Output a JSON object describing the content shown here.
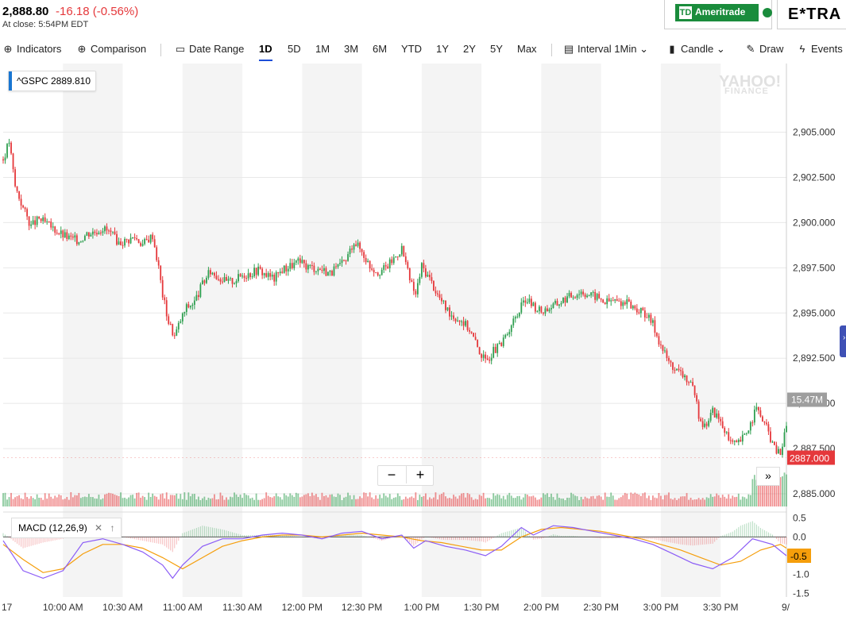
{
  "quote": {
    "price": "2,888.80",
    "change": "-16.18 (-0.56%)",
    "at_close": "At close: 5:54PM EDT"
  },
  "ads": {
    "td_logo": "TD",
    "td_name": "Ameritrade",
    "etrade": "E*TRA"
  },
  "toolbar": {
    "indicators": "Indicators",
    "comparison": "Comparison",
    "date_range": "Date Range",
    "ranges": [
      "1D",
      "5D",
      "1M",
      "3M",
      "6M",
      "YTD",
      "1Y",
      "2Y",
      "5Y",
      "Max"
    ],
    "active_range": "1D",
    "interval": "Interval",
    "interval_value": "1Min",
    "chart_type": "Candle",
    "draw": "Draw",
    "events": "Events"
  },
  "symbol_label": "^GSPC  2889.810",
  "watermark": {
    "line1": "YAHOO!",
    "line2": "FINANCE"
  },
  "volume_label": "15.47M",
  "last_price_label": "2887.000",
  "macd_label": "MACD (12,26,9)",
  "zoom": {
    "minus": "−",
    "plus": "+"
  },
  "ff": "»",
  "colors": {
    "up": "#2e9e4f",
    "down": "#e5383b",
    "macd": "#8b5cf6",
    "signal": "#f59e0b",
    "last_price_bg": "#e5383b"
  },
  "chart_data": [
    {
      "type": "candlestick",
      "title": "^GSPC",
      "x_ticks": [
        "10:00 AM",
        "10:30 AM",
        "11:00 AM",
        "11:30 AM",
        "12:00 PM",
        "12:30 PM",
        "1:00 PM",
        "1:30 PM",
        "2:00 PM",
        "2:30 PM",
        "3:00 PM",
        "3:30 PM"
      ],
      "x_edge_labels": [
        "17",
        "9/"
      ],
      "y_ticks": [
        "2,905.000",
        "2,902.500",
        "2,900.000",
        "2,897.500",
        "2,895.000",
        "2,892.500",
        "2,890.000",
        "2,887.500",
        "2,885.000"
      ],
      "ylim": [
        2884.3,
        2908.8
      ],
      "xlim": [
        0,
        393
      ],
      "tick_minutes": [
        30,
        60,
        90,
        120,
        150,
        180,
        210,
        240,
        270,
        300,
        330,
        360
      ],
      "price_path": [
        [
          0,
          2903.5
        ],
        [
          3,
          2904.5
        ],
        [
          6,
          2902.0
        ],
        [
          10,
          2900.8
        ],
        [
          14,
          2899.8
        ],
        [
          18,
          2900.2
        ],
        [
          22,
          2899.9
        ],
        [
          26,
          2899.6
        ],
        [
          30,
          2899.3
        ],
        [
          34,
          2899.1
        ],
        [
          38,
          2899.0
        ],
        [
          42,
          2899.4
        ],
        [
          46,
          2899.5
        ],
        [
          50,
          2899.7
        ],
        [
          54,
          2899.4
        ],
        [
          58,
          2898.9
        ],
        [
          62,
          2899.0
        ],
        [
          66,
          2899.2
        ],
        [
          70,
          2898.8
        ],
        [
          75,
          2899.3
        ],
        [
          78,
          2897.5
        ],
        [
          80,
          2896.0
        ],
        [
          83,
          2894.5
        ],
        [
          86,
          2893.7
        ],
        [
          89,
          2894.6
        ],
        [
          92,
          2895.3
        ],
        [
          96,
          2895.6
        ],
        [
          100,
          2896.6
        ],
        [
          104,
          2897.3
        ],
        [
          108,
          2897.0
        ],
        [
          112,
          2896.7
        ],
        [
          116,
          2896.8
        ],
        [
          120,
          2897.1
        ],
        [
          124,
          2897.2
        ],
        [
          128,
          2897.4
        ],
        [
          132,
          2897.1
        ],
        [
          136,
          2896.9
        ],
        [
          140,
          2897.4
        ],
        [
          144,
          2897.6
        ],
        [
          148,
          2897.8
        ],
        [
          152,
          2897.6
        ],
        [
          156,
          2897.5
        ],
        [
          160,
          2897.4
        ],
        [
          164,
          2897.2
        ],
        [
          168,
          2897.5
        ],
        [
          172,
          2897.9
        ],
        [
          176,
          2899.0
        ],
        [
          180,
          2898.4
        ],
        [
          184,
          2897.6
        ],
        [
          188,
          2897.3
        ],
        [
          192,
          2897.5
        ],
        [
          196,
          2898.0
        ],
        [
          200,
          2898.6
        ],
        [
          204,
          2896.8
        ],
        [
          207,
          2896.0
        ],
        [
          210,
          2897.6
        ],
        [
          214,
          2896.9
        ],
        [
          218,
          2896.0
        ],
        [
          222,
          2895.3
        ],
        [
          226,
          2894.8
        ],
        [
          230,
          2894.6
        ],
        [
          234,
          2894.1
        ],
        [
          238,
          2893.1
        ],
        [
          242,
          2892.3
        ],
        [
          246,
          2892.9
        ],
        [
          250,
          2893.2
        ],
        [
          254,
          2894.2
        ],
        [
          258,
          2894.9
        ],
        [
          262,
          2895.8
        ],
        [
          266,
          2895.4
        ],
        [
          270,
          2895.1
        ],
        [
          274,
          2895.3
        ],
        [
          278,
          2895.5
        ],
        [
          282,
          2895.8
        ],
        [
          286,
          2896.0
        ],
        [
          290,
          2896.2
        ],
        [
          294,
          2896.0
        ],
        [
          298,
          2895.9
        ],
        [
          302,
          2895.6
        ],
        [
          306,
          2895.7
        ],
        [
          310,
          2895.6
        ],
        [
          314,
          2895.5
        ],
        [
          318,
          2895.2
        ],
        [
          322,
          2895.0
        ],
        [
          326,
          2894.4
        ],
        [
          330,
          2893.2
        ],
        [
          334,
          2892.3
        ],
        [
          338,
          2891.8
        ],
        [
          342,
          2891.5
        ],
        [
          346,
          2890.8
        ],
        [
          349,
          2889.4
        ],
        [
          352,
          2888.7
        ],
        [
          356,
          2889.6
        ],
        [
          360,
          2889.0
        ],
        [
          364,
          2887.9
        ],
        [
          368,
          2887.7
        ],
        [
          372,
          2888.2
        ],
        [
          375,
          2888.9
        ],
        [
          378,
          2889.7
        ],
        [
          381,
          2889.1
        ],
        [
          384,
          2888.4
        ],
        [
          387,
          2887.5
        ],
        [
          390,
          2887.2
        ],
        [
          393,
          2888.8
        ]
      ],
      "volume_label": "15.47M",
      "last_price": 2887.0
    },
    {
      "type": "line",
      "title": "MACD (12,26,9)",
      "y_ticks": [
        "0.5",
        "0.0",
        "-0.5",
        "-1.0",
        "-1.5"
      ],
      "ylim": [
        -1.6,
        0.6
      ],
      "series": [
        {
          "name": "",
          "values": [
            [
              0,
              -0.1
            ],
            [
              10,
              -0.9
            ],
            [
              20,
              -1.1
            ],
            [
              30,
              -0.9
            ],
            [
              40,
              -0.15
            ],
            [
              50,
              -0.05
            ],
            [
              60,
              -0.2
            ],
            [
              70,
              -0.4
            ],
            [
              80,
              -0.75
            ],
            [
              85,
              -1.1
            ],
            [
              90,
              -0.75
            ],
            [
              100,
              -0.25
            ],
            [
              110,
              -0.05
            ],
            [
              120,
              -0.05
            ],
            [
              130,
              0.05
            ],
            [
              140,
              0.1
            ],
            [
              150,
              0.05
            ],
            [
              160,
              -0.05
            ],
            [
              170,
              0.1
            ],
            [
              180,
              0.15
            ],
            [
              190,
              -0.05
            ],
            [
              200,
              0.05
            ],
            [
              206,
              -0.3
            ],
            [
              212,
              -0.1
            ],
            [
              222,
              -0.25
            ],
            [
              232,
              -0.35
            ],
            [
              242,
              -0.5
            ],
            [
              250,
              -0.25
            ],
            [
              260,
              0.25
            ],
            [
              266,
              0.05
            ],
            [
              276,
              0.3
            ],
            [
              286,
              0.25
            ],
            [
              296,
              0.15
            ],
            [
              306,
              0.05
            ],
            [
              316,
              -0.05
            ],
            [
              326,
              -0.2
            ],
            [
              336,
              -0.45
            ],
            [
              346,
              -0.7
            ],
            [
              356,
              -0.85
            ],
            [
              366,
              -0.55
            ],
            [
              376,
              -0.05
            ],
            [
              386,
              -0.2
            ],
            [
              393,
              -0.5
            ]
          ]
        },
        {
          "name": "",
          "values": [
            [
              0,
              -0.2
            ],
            [
              10,
              -0.6
            ],
            [
              20,
              -0.95
            ],
            [
              30,
              -0.85
            ],
            [
              40,
              -0.45
            ],
            [
              50,
              -0.2
            ],
            [
              60,
              -0.2
            ],
            [
              70,
              -0.3
            ],
            [
              80,
              -0.55
            ],
            [
              90,
              -0.85
            ],
            [
              100,
              -0.55
            ],
            [
              110,
              -0.25
            ],
            [
              120,
              -0.1
            ],
            [
              130,
              0.0
            ],
            [
              140,
              0.05
            ],
            [
              150,
              0.05
            ],
            [
              160,
              0.0
            ],
            [
              170,
              0.05
            ],
            [
              180,
              0.1
            ],
            [
              190,
              0.05
            ],
            [
              200,
              0.0
            ],
            [
              210,
              -0.1
            ],
            [
              220,
              -0.15
            ],
            [
              230,
              -0.25
            ],
            [
              240,
              -0.35
            ],
            [
              250,
              -0.35
            ],
            [
              260,
              0.0
            ],
            [
              270,
              0.2
            ],
            [
              280,
              0.25
            ],
            [
              290,
              0.2
            ],
            [
              300,
              0.15
            ],
            [
              310,
              0.05
            ],
            [
              320,
              -0.05
            ],
            [
              330,
              -0.2
            ],
            [
              340,
              -0.35
            ],
            [
              350,
              -0.55
            ],
            [
              360,
              -0.75
            ],
            [
              370,
              -0.65
            ],
            [
              380,
              -0.35
            ],
            [
              390,
              -0.2
            ],
            [
              393,
              -0.3
            ]
          ]
        }
      ],
      "last_value_label": "-0.5"
    }
  ]
}
